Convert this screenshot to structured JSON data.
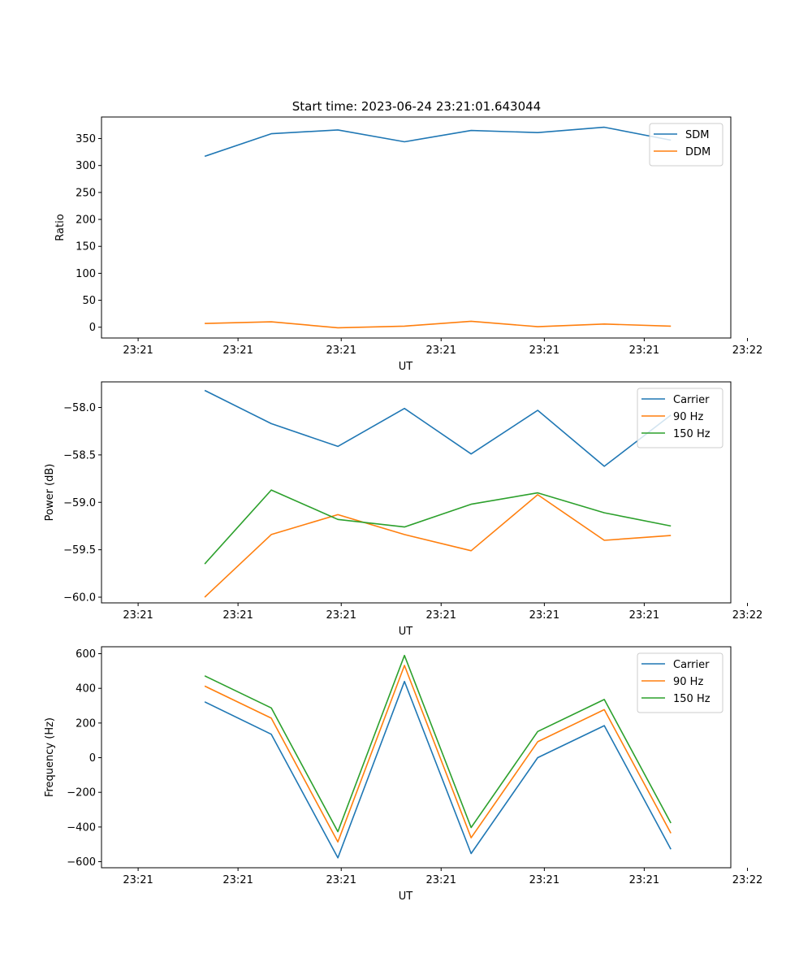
{
  "figure": {
    "title": "Start time: 2023-06-24 23:21:01.643044"
  },
  "chart_data": [
    {
      "type": "line",
      "title": "Start time: 2023-06-24 23:21:01.643044",
      "xlabel": "UT",
      "ylabel": "Ratio",
      "x": [
        1,
        2,
        3,
        4,
        5,
        6,
        7,
        8
      ],
      "xlim": [
        -0.55,
        8.9
      ],
      "x_ticks": [
        0,
        1.5,
        3.05,
        4.55,
        6.1,
        7.6,
        9.15
      ],
      "x_tick_labels": [
        "23:21",
        "23:21",
        "23:21",
        "23:21",
        "23:21",
        "23:21",
        "23:22"
      ],
      "ylim": [
        -20,
        390
      ],
      "y_ticks": [
        0,
        50,
        100,
        150,
        200,
        250,
        300,
        350
      ],
      "y_tick_labels": [
        "0",
        "50",
        "100",
        "150",
        "200",
        "250",
        "300",
        "350"
      ],
      "legend": "top-right",
      "grid": false,
      "series": [
        {
          "name": "SDM",
          "color": "#1f77b4",
          "values": [
            317,
            359,
            366,
            344,
            365,
            361,
            371,
            347
          ]
        },
        {
          "name": "DDM",
          "color": "#ff7f0e",
          "values": [
            7,
            10,
            -1,
            2,
            11,
            1,
            6,
            2
          ]
        }
      ]
    },
    {
      "type": "line",
      "xlabel": "UT",
      "ylabel": "Power (dB)",
      "x": [
        1,
        2,
        3,
        4,
        5,
        6,
        7,
        8
      ],
      "xlim": [
        -0.55,
        8.9
      ],
      "x_ticks": [
        0,
        1.5,
        3.05,
        4.55,
        6.1,
        7.6,
        9.15
      ],
      "x_tick_labels": [
        "23:21",
        "23:21",
        "23:21",
        "23:21",
        "23:21",
        "23:21",
        "23:22"
      ],
      "ylim": [
        -60.06,
        -57.73
      ],
      "y_ticks": [
        -60.0,
        -59.5,
        -59.0,
        -58.5,
        -58.0
      ],
      "y_tick_labels": [
        "−60.0",
        "−59.5",
        "−59.0",
        "−58.5",
        "−58.0"
      ],
      "legend": "top-right",
      "grid": false,
      "series": [
        {
          "name": "Carrier",
          "color": "#1f77b4",
          "values": [
            -57.82,
            -58.17,
            -58.41,
            -58.01,
            -58.49,
            -58.03,
            -58.62,
            -58.08
          ]
        },
        {
          "name": "90 Hz",
          "color": "#ff7f0e",
          "values": [
            -60.0,
            -59.34,
            -59.13,
            -59.34,
            -59.51,
            -58.92,
            -59.4,
            -59.35
          ]
        },
        {
          "name": "150 Hz",
          "color": "#2ca02c",
          "values": [
            -59.65,
            -58.87,
            -59.18,
            -59.26,
            -59.02,
            -58.9,
            -59.11,
            -59.25
          ]
        }
      ]
    },
    {
      "type": "line",
      "xlabel": "UT",
      "ylabel": "Frequency (Hz)",
      "x": [
        1,
        2,
        3,
        4,
        5,
        6,
        7,
        8
      ],
      "xlim": [
        -0.55,
        8.9
      ],
      "x_ticks": [
        0,
        1.5,
        3.05,
        4.55,
        6.1,
        7.6,
        9.15
      ],
      "x_tick_labels": [
        "23:21",
        "23:21",
        "23:21",
        "23:21",
        "23:21",
        "23:21",
        "23:22"
      ],
      "ylim": [
        -635,
        640
      ],
      "y_ticks": [
        -600,
        -400,
        -200,
        0,
        200,
        400,
        600
      ],
      "y_tick_labels": [
        "−600",
        "−400",
        "−200",
        "0",
        "200",
        "400",
        "600"
      ],
      "legend": "top-right",
      "grid": false,
      "series": [
        {
          "name": "Carrier",
          "color": "#1f77b4",
          "values": [
            322,
            135,
            -578,
            440,
            -553,
            0,
            185,
            -528
          ]
        },
        {
          "name": "90 Hz",
          "color": "#ff7f0e",
          "values": [
            413,
            228,
            -486,
            532,
            -462,
            92,
            277,
            -436
          ]
        },
        {
          "name": "150 Hz",
          "color": "#2ca02c",
          "values": [
            472,
            287,
            -427,
            590,
            -403,
            151,
            336,
            -377
          ]
        }
      ]
    }
  ]
}
